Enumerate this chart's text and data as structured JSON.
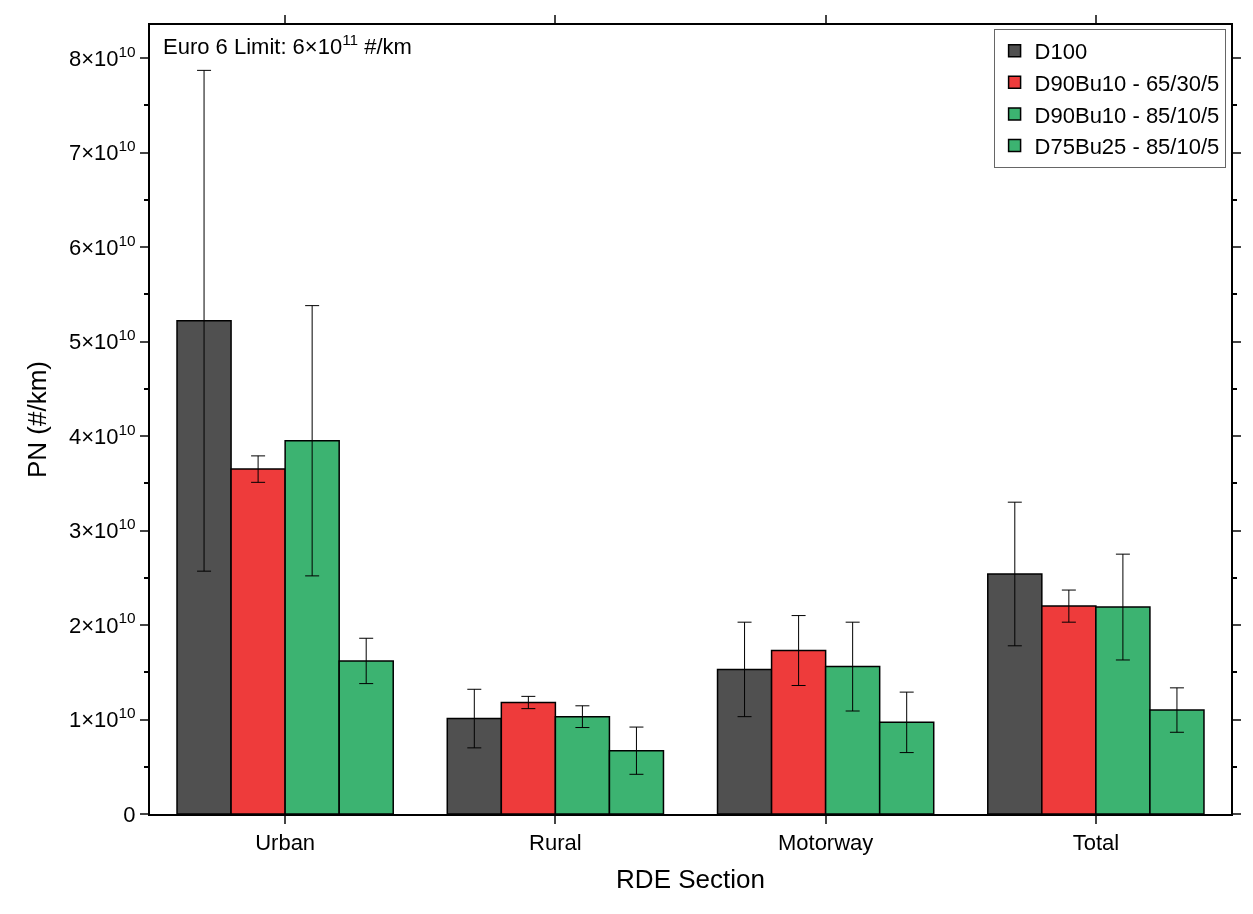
{
  "chart_data": {
    "type": "bar",
    "xlabel": "RDE Section",
    "ylabel": "PN (#/km)",
    "categories": [
      "Urban",
      "Rural",
      "Motorway",
      "Total"
    ],
    "series": [
      {
        "name": "D100",
        "color": "#505050",
        "values": [
          52200000000.0,
          10100000000.0,
          15300000000.0,
          25400000000.0
        ],
        "errors": [
          26500000000.0,
          3100000000.0,
          5000000000.0,
          7600000000.0
        ]
      },
      {
        "name": "D90Bu10 - 65/30/5",
        "color": "#ee3b3b",
        "values": [
          36500000000.0,
          11800000000.0,
          17300000000.0,
          22000000000.0
        ],
        "errors": [
          1400000000.0,
          650000000.0,
          3700000000.0,
          1700000000.0
        ]
      },
      {
        "name": "D90Bu10 - 85/10/5",
        "color": "#3cb371",
        "values": [
          39500000000.0,
          10300000000.0,
          15600000000.0,
          21900000000.0
        ],
        "errors": [
          14300000000.0,
          1150000000.0,
          4700000000.0,
          5600000000.0
        ]
      },
      {
        "name": "D75Bu25 - 85/10/5",
        "color": "#3cb371",
        "values": [
          16200000000.0,
          6700000000.0,
          9700000000.0,
          11000000000.0
        ],
        "errors": [
          2400000000.0,
          2500000000.0,
          3200000000.0,
          2350000000.0
        ]
      }
    ],
    "ylim": [
      0,
      83500000000.0
    ],
    "yticks": [
      0,
      {
        "value": 10000000000.0,
        "label": "1×10$^{10}$"
      },
      {
        "value": 20000000000.0,
        "label": "2×10$^{10}$"
      },
      {
        "value": 30000000000.0,
        "label": "3×10$^{10}$"
      },
      {
        "value": 40000000000.0,
        "label": "4×10$^{10}$"
      },
      {
        "value": 50000000000.0,
        "label": "5×10$^{10}$"
      },
      {
        "value": 60000000000.0,
        "label": "6×10$^{10}$"
      },
      {
        "value": 70000000000.0,
        "label": "7×10$^{10}$"
      },
      {
        "value": 80000000000.0,
        "label": "8×10$^{10}$"
      }
    ],
    "annotations": [
      "Euro 6 Limit: 6×10$^{11}$ #/km"
    ],
    "legend": "top right"
  }
}
